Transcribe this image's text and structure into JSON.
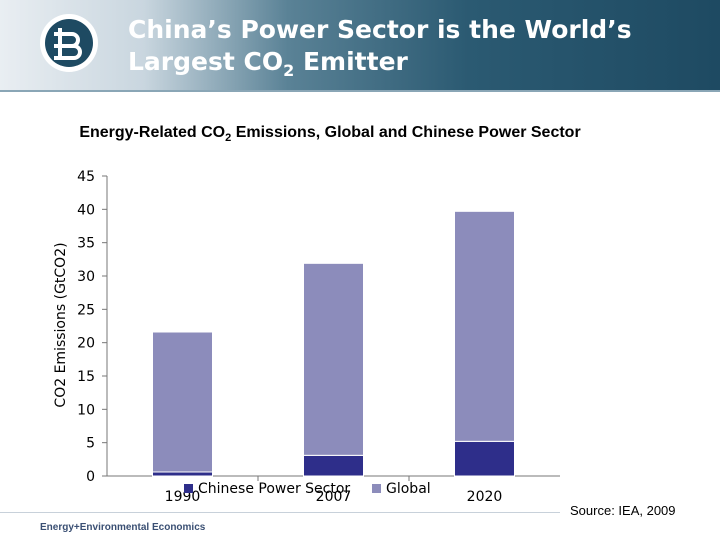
{
  "header": {
    "title_line1": "China’s Power Sector is the World’s",
    "title_line2_pre": "Largest CO",
    "title_line2_sub": "2",
    "title_line2_post": " Emitter"
  },
  "footer": {
    "company": "Energy+Environmental Economics",
    "source": "Source: IEA, 2009"
  },
  "colors": {
    "china": "#2e2e8a",
    "global": "#8c8cbb",
    "header_dark": "#1e4a62"
  },
  "chart_data": {
    "type": "bar",
    "stacked": true,
    "title_pre": "Energy-Related CO",
    "title_sub": "2",
    "title_post": " Emissions, Global and Chinese Power Sector",
    "ylabel": "CO2 Emissions (GtCO2)",
    "xlabel": "",
    "ylim": [
      0,
      45
    ],
    "yticks": [
      "0",
      "5",
      "10",
      "15",
      "20",
      "25",
      "30",
      "35",
      "40",
      "45"
    ],
    "categories": [
      "1990",
      "2007",
      "2020"
    ],
    "series": [
      {
        "name": "Chinese Power Sector",
        "values": [
          0.6,
          3.1,
          5.2
        ]
      },
      {
        "name": "Global",
        "values": [
          21.0,
          28.8,
          34.5
        ]
      }
    ],
    "legend": "bottom",
    "grid": false
  }
}
